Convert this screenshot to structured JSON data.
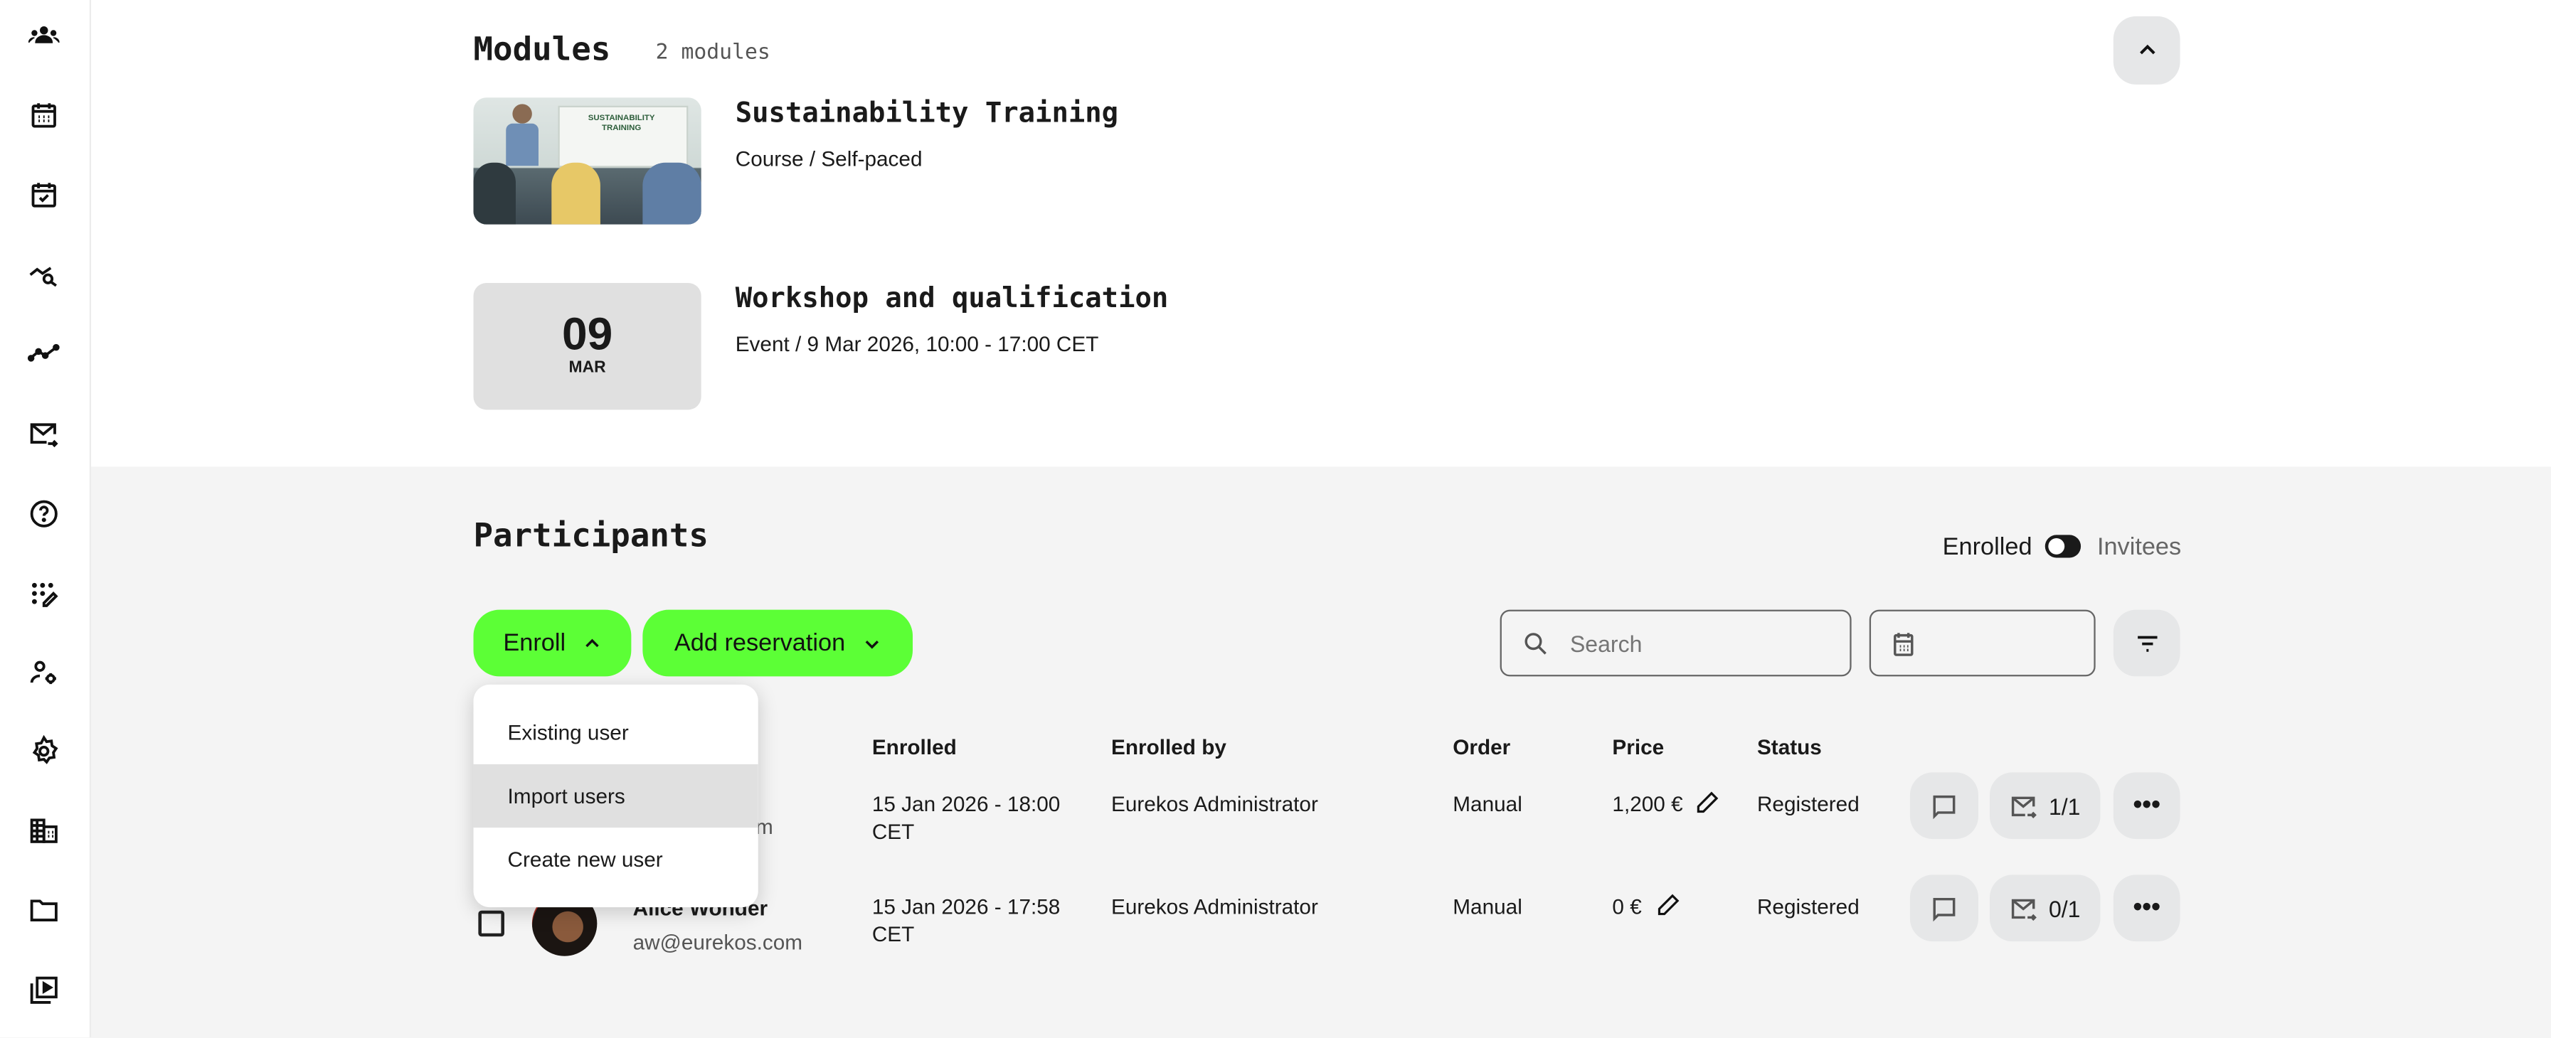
{
  "sidebar": {
    "icons": [
      "users-group-icon",
      "calendar-icon",
      "calendar-check-icon",
      "analytics-search-icon",
      "trend-line-icon",
      "mail-forward-icon",
      "help-circle-icon",
      "grid-edit-icon",
      "user-settings-icon",
      "settings-gear-icon",
      "building-icon",
      "folder-icon",
      "video-library-icon"
    ]
  },
  "modules": {
    "title": "Modules",
    "count": "2 modules",
    "items": [
      {
        "title": "Sustainability Training",
        "subtitle": "Course / Self-paced",
        "thumbnail_text": "SUSTAINABILITY TRAINING"
      },
      {
        "title": "Workshop and qualification",
        "subtitle": "Event / 9 Mar 2026, 10:00 - 17:00 CET",
        "day": "09",
        "month": "MAR"
      }
    ]
  },
  "participants": {
    "title": "Participants",
    "toggle": {
      "left": "Enrolled",
      "right": "Invitees",
      "state": "Enrolled"
    },
    "enroll_label": "Enroll",
    "add_reservation_label": "Add reservation",
    "search_placeholder": "Search",
    "enroll_menu": [
      "Existing user",
      "Import users",
      "Create new user"
    ],
    "enroll_menu_highlighted": "Import users",
    "columns": [
      "Enrolled",
      "Enrolled by",
      "Order",
      "Price",
      "Status"
    ],
    "rows": [
      {
        "name": "",
        "email": ".com",
        "enrolled": "15 Jan 2026 - 18:00",
        "enrolled_tz": "CET",
        "enrolled_by": "Eurekos Administrator",
        "order": "Manual",
        "price": "1,200 €",
        "status": "Registered",
        "mail_count": "1/1"
      },
      {
        "name": "Alice Wonder",
        "email": "aw@eurekos.com",
        "enrolled": "15 Jan 2026 - 17:58",
        "enrolled_tz": "CET",
        "enrolled_by": "Eurekos Administrator",
        "order": "Manual",
        "price": "0 €",
        "status": "Registered",
        "mail_count": "0/1"
      }
    ]
  },
  "colors": {
    "accent": "#5cff36",
    "button_gray": "#e6e7e8",
    "section_bg": "#f4f4f4"
  }
}
